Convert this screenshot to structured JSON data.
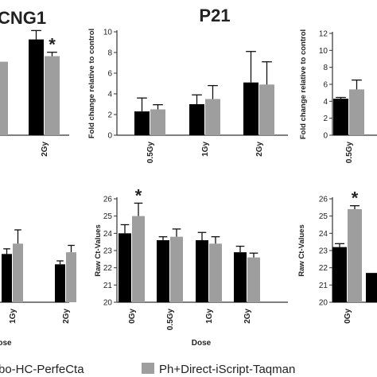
{
  "legend": {
    "series_labels": [
      "bo-HC-PerfeCta",
      "Ph+Direct-iScript-Taqman"
    ],
    "colors": [
      "#000000",
      "#9e9e9e"
    ]
  },
  "chart_data": [
    {
      "type": "bar",
      "title": "CNG1",
      "ylabel": "",
      "xlabel": "",
      "categories": [
        "",
        "2Gy"
      ],
      "series": [
        {
          "values": [
            6.8,
            8.6
          ],
          "errors": [
            1.0,
            0.8
          ]
        },
        {
          "values": [
            6.6,
            7.1
          ],
          "errors": [
            null,
            0.35
          ]
        }
      ],
      "ylim": [
        0,
        10
      ],
      "yticks": [],
      "annotations": [
        {
          "text": "*",
          "category": "2Gy",
          "series": 1
        }
      ]
    },
    {
      "type": "bar",
      "title": "P21",
      "ylabel": "Fold change relative to control",
      "xlabel": "",
      "categories": [
        "0.5Gy",
        "1Gy",
        "2Gy"
      ],
      "series": [
        {
          "values": [
            2.3,
            3.0,
            5.1
          ],
          "errors": [
            1.3,
            0.9,
            3.0
          ]
        },
        {
          "values": [
            2.5,
            3.5,
            4.9
          ],
          "errors": [
            0.45,
            1.3,
            2.2
          ]
        }
      ],
      "ylim": [
        0,
        10
      ],
      "yticks": [
        0,
        2,
        4,
        6,
        8,
        10
      ]
    },
    {
      "type": "bar",
      "title": "",
      "ylabel": "Fold change relative to control",
      "xlabel": "",
      "categories": [
        "0.5Gy"
      ],
      "series": [
        {
          "values": [
            4.3
          ],
          "errors": [
            0.15
          ]
        },
        {
          "values": [
            5.4
          ],
          "errors": [
            1.1
          ]
        }
      ],
      "ylim": [
        0,
        12
      ],
      "yticks": [
        0,
        2,
        4,
        6,
        8,
        10,
        12
      ]
    },
    {
      "type": "bar",
      "title": "",
      "ylabel": "",
      "xlabel": "ose",
      "categories": [
        "1Gy",
        "2Gy"
      ],
      "series": [
        {
          "values": [
            22.8,
            22.2
          ],
          "errors": [
            0.3,
            0.2
          ]
        },
        {
          "values": [
            23.4,
            22.9
          ],
          "errors": [
            0.8,
            0.4
          ]
        }
      ],
      "ylim": [
        20,
        26
      ],
      "yticks": []
    },
    {
      "type": "bar",
      "title": "",
      "ylabel": "Raw Ct-Values",
      "xlabel": "Dose",
      "categories": [
        "0Gy",
        "0.5Gy",
        "1Gy",
        "2Gy"
      ],
      "series": [
        {
          "values": [
            24.0,
            23.6,
            23.6,
            22.9
          ],
          "errors": [
            0.5,
            0.2,
            0.45,
            0.35
          ]
        },
        {
          "values": [
            25.0,
            23.8,
            23.4,
            22.6
          ],
          "errors": [
            0.75,
            0.45,
            0.4,
            0.25
          ]
        }
      ],
      "ylim": [
        20,
        26
      ],
      "yticks": [
        20,
        21,
        22,
        23,
        24,
        25,
        26
      ],
      "annotations": [
        {
          "text": "*",
          "category": "0Gy",
          "series": 1
        }
      ]
    },
    {
      "type": "bar",
      "title": "",
      "ylabel": "Raw Ct-Values",
      "xlabel": "",
      "categories": [
        "0Gy",
        "0"
      ],
      "series": [
        {
          "values": [
            23.2,
            21.7
          ],
          "errors": [
            0.2,
            null
          ]
        },
        {
          "values": [
            25.4,
            null
          ],
          "errors": [
            0.2,
            null
          ]
        }
      ],
      "ylim": [
        20,
        26
      ],
      "yticks": [
        20,
        21,
        22,
        23,
        24,
        25,
        26
      ],
      "annotations": [
        {
          "text": "*",
          "category": "0Gy",
          "series": 1
        }
      ]
    }
  ]
}
